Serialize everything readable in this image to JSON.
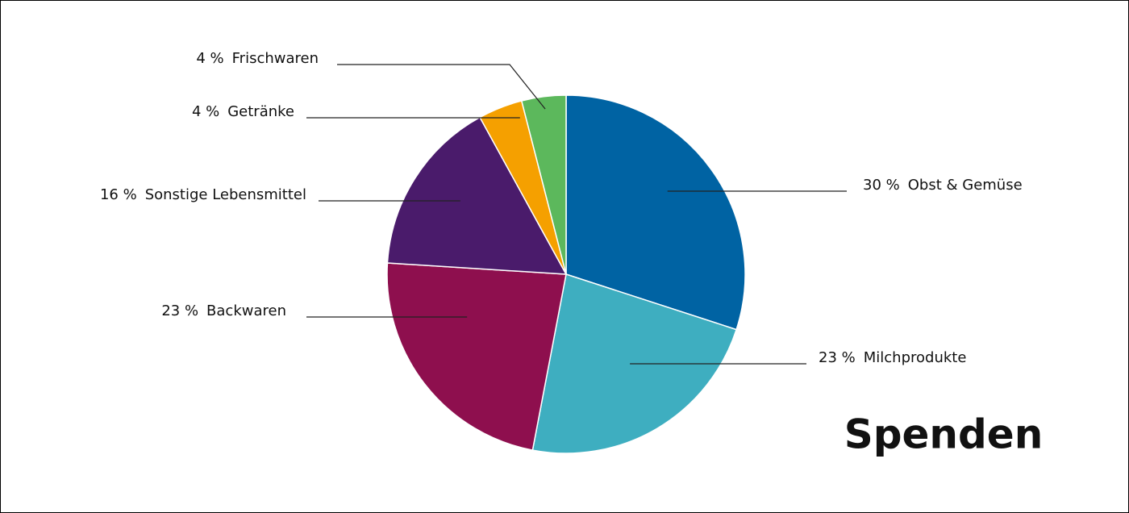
{
  "chart_data": {
    "type": "pie",
    "title": "Spenden",
    "categories": [
      "Obst & Gemüse",
      "Milchprodukte",
      "Backwaren",
      "Sonstige Lebensmittel",
      "Getränke",
      "Frischwaren"
    ],
    "values": [
      30,
      23,
      23,
      16,
      4,
      4
    ],
    "value_labels": [
      "30 %",
      "23 %",
      "23 %",
      "16 %",
      "4 %",
      "4 %"
    ],
    "colors": [
      "#0063a3",
      "#3eaec0",
      "#8e0f4e",
      "#4a1b6b",
      "#f5a000",
      "#5cb85c"
    ]
  }
}
